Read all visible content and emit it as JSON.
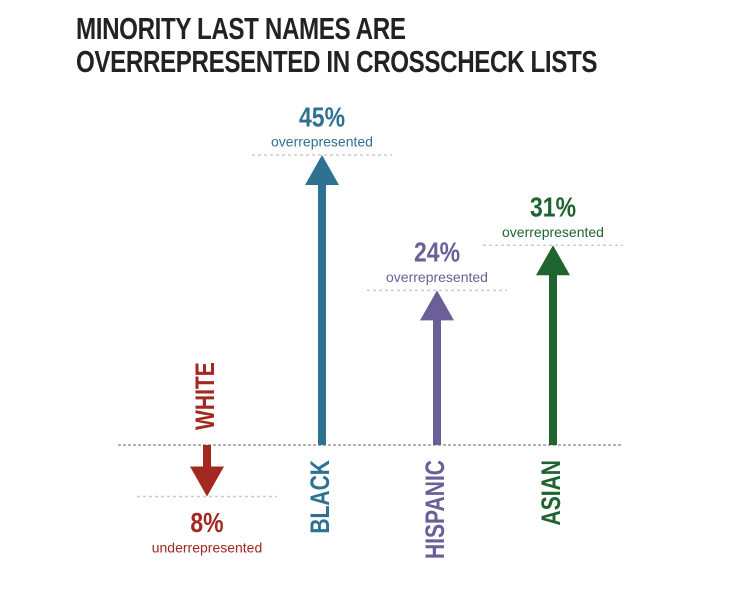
{
  "chart_data": {
    "type": "arrow",
    "title": "MINORITY LAST NAMES ARE OVERREPRESENTED IN CROSSCHECK LISTS",
    "categories": [
      "WHITE",
      "BLACK",
      "HISPANIC",
      "ASIAN"
    ],
    "values": [
      -8,
      45,
      24,
      31
    ],
    "value_labels": [
      "8%",
      "45%",
      "24%",
      "31%"
    ],
    "notes": [
      "underrepresented",
      "overrepresented",
      "overrepresented",
      "overrepresented"
    ],
    "colors": [
      "#a3281f",
      "#2f7191",
      "#6a5f97",
      "#1f6331"
    ]
  }
}
